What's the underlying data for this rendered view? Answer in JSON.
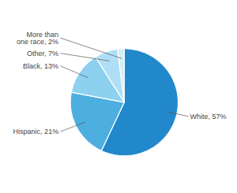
{
  "chart_data": {
    "type": "pie",
    "categories": [
      "White",
      "Hispanic",
      "Black",
      "Other",
      "More than\none race"
    ],
    "values": [
      57,
      21,
      13,
      7,
      2
    ],
    "value_labels": [
      "White, 57%",
      "Hispanic, 21%",
      "Black, 13%",
      "Other, 7%",
      "More than\none race, 2%"
    ],
    "colors": [
      "#2288cc",
      "#4daee0",
      "#8dd0f0",
      "#b0dff5",
      "#d0eef8"
    ],
    "data_labels": true
  }
}
